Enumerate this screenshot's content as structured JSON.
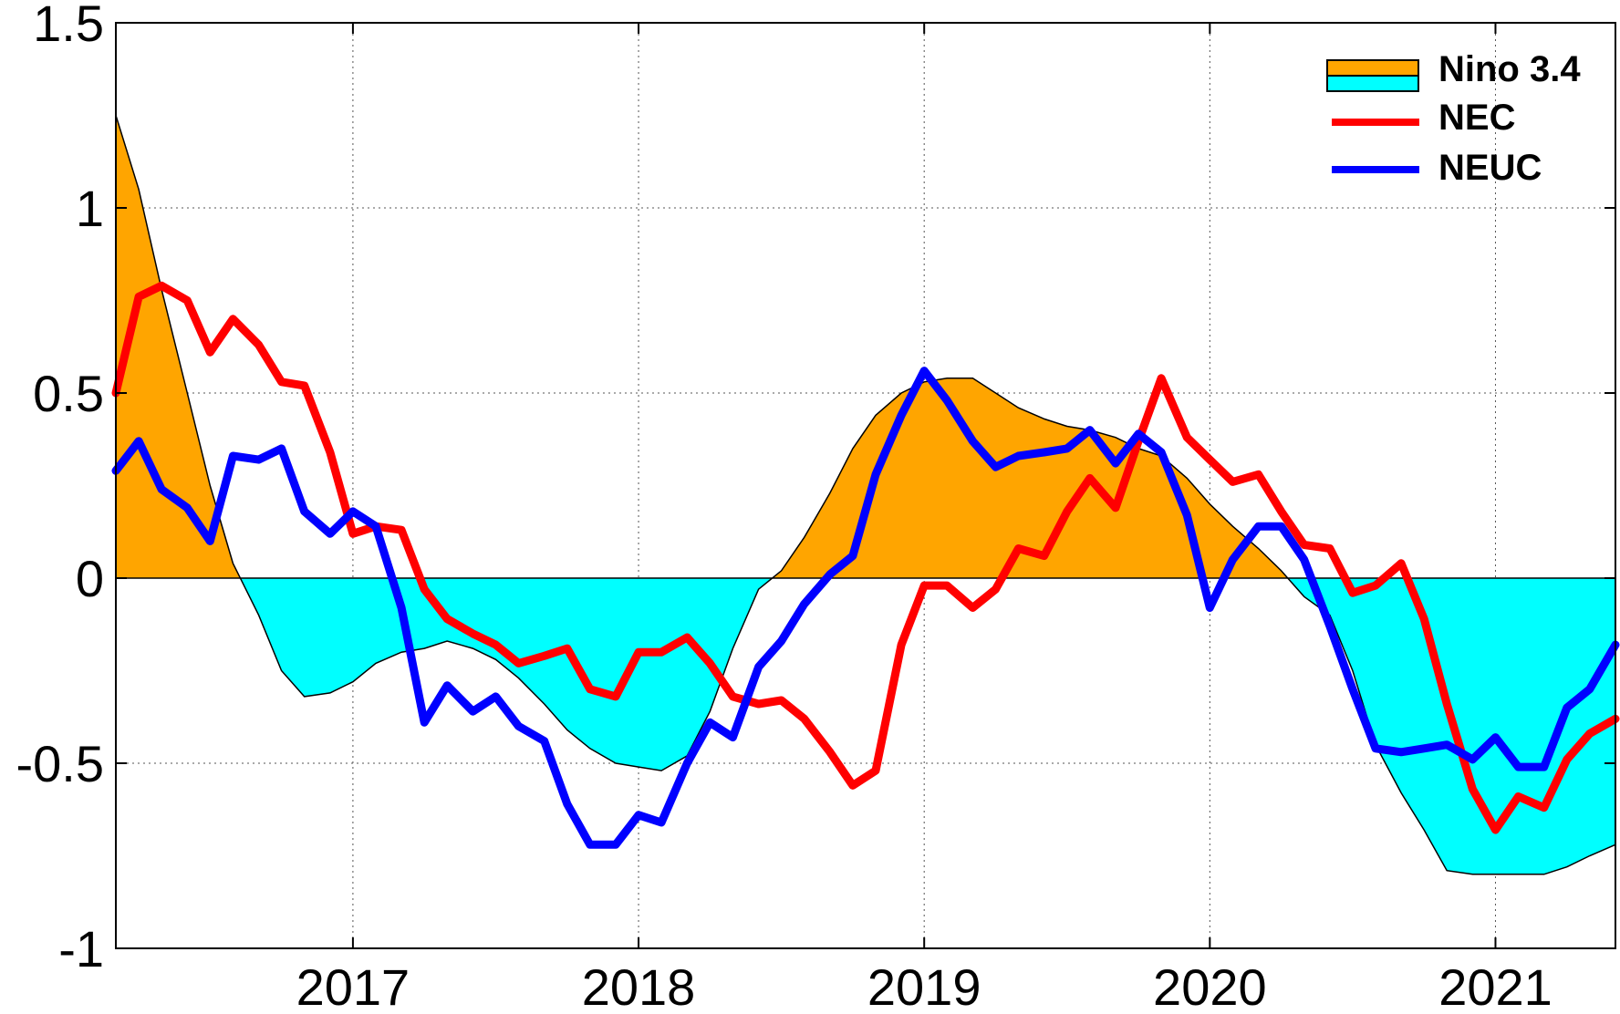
{
  "chart_data": {
    "type": "line",
    "title": "",
    "xlabel": "",
    "ylabel": "",
    "xlim": [
      2016.17,
      2021.42
    ],
    "ylim": [
      -1,
      1.5
    ],
    "grid": true,
    "legend_position": "top-right",
    "x_ticks": [
      2017,
      2018,
      2019,
      2020,
      2021
    ],
    "x_tick_labels": [
      "2017",
      "2018",
      "2019",
      "2020",
      "2021"
    ],
    "y_ticks": [
      1.5,
      1,
      0.5,
      0,
      -0.5,
      -1
    ],
    "y_tick_labels": [
      "1.5",
      "1",
      "0.5",
      "0",
      "-0.5",
      "-1"
    ],
    "colors": {
      "positive_fill": "#ffa500",
      "negative_fill": "#00ffff",
      "nec": "#ff0000",
      "neuc": "#0000ff"
    },
    "legend": [
      {
        "label": "Nino 3.4",
        "kind": "area"
      },
      {
        "label": "NEC",
        "kind": "line"
      },
      {
        "label": "NEUC",
        "kind": "line"
      }
    ],
    "series": [
      {
        "name": "Nino 3.4",
        "kind": "area",
        "x": [
          2016.17,
          2016.25,
          2016.33,
          2016.42,
          2016.5,
          2016.58,
          2016.67,
          2016.75,
          2016.83,
          2016.92,
          2017.0,
          2017.08,
          2017.17,
          2017.25,
          2017.33,
          2017.42,
          2017.5,
          2017.58,
          2017.67,
          2017.75,
          2017.83,
          2017.92,
          2018.0,
          2018.08,
          2018.17,
          2018.25,
          2018.33,
          2018.42,
          2018.5,
          2018.58,
          2018.67,
          2018.75,
          2018.83,
          2018.92,
          2019.0,
          2019.08,
          2019.17,
          2019.25,
          2019.33,
          2019.42,
          2019.5,
          2019.58,
          2019.67,
          2019.75,
          2019.83,
          2019.92,
          2020.0,
          2020.08,
          2020.17,
          2020.25,
          2020.33,
          2020.42,
          2020.5,
          2020.58,
          2020.67,
          2020.75,
          2020.83,
          2020.92,
          2021.0,
          2021.08,
          2021.17,
          2021.25,
          2021.33,
          2021.42
        ],
        "values": [
          1.25,
          1.05,
          0.78,
          0.5,
          0.25,
          0.04,
          -0.1,
          -0.25,
          -0.32,
          -0.31,
          -0.28,
          -0.23,
          -0.2,
          -0.19,
          -0.17,
          -0.19,
          -0.22,
          -0.27,
          -0.34,
          -0.41,
          -0.46,
          -0.5,
          -0.51,
          -0.52,
          -0.48,
          -0.36,
          -0.19,
          -0.03,
          0.02,
          0.11,
          0.23,
          0.35,
          0.44,
          0.5,
          0.53,
          0.54,
          0.54,
          0.5,
          0.46,
          0.43,
          0.41,
          0.4,
          0.38,
          0.35,
          0.33,
          0.27,
          0.2,
          0.14,
          0.08,
          0.02,
          -0.05,
          -0.1,
          -0.25,
          -0.45,
          -0.58,
          -0.68,
          -0.79,
          -0.8,
          -0.8,
          -0.8,
          -0.8,
          -0.78,
          -0.75,
          -0.72
        ]
      },
      {
        "name": "NEC",
        "kind": "line",
        "x": [
          2016.17,
          2016.25,
          2016.33,
          2016.42,
          2016.5,
          2016.58,
          2016.67,
          2016.75,
          2016.83,
          2016.92,
          2017.0,
          2017.08,
          2017.17,
          2017.25,
          2017.33,
          2017.42,
          2017.5,
          2017.58,
          2017.67,
          2017.75,
          2017.83,
          2017.92,
          2018.0,
          2018.08,
          2018.17,
          2018.25,
          2018.33,
          2018.42,
          2018.5,
          2018.58,
          2018.67,
          2018.75,
          2018.83,
          2018.92,
          2019.0,
          2019.08,
          2019.17,
          2019.25,
          2019.33,
          2019.42,
          2019.5,
          2019.58,
          2019.67,
          2019.75,
          2019.83,
          2019.92,
          2020.0,
          2020.08,
          2020.17,
          2020.25,
          2020.33,
          2020.42,
          2020.5,
          2020.58,
          2020.67,
          2020.75,
          2020.83,
          2020.92,
          2021.0,
          2021.08,
          2021.17,
          2021.25,
          2021.33,
          2021.42
        ],
        "values": [
          0.5,
          0.76,
          0.79,
          0.75,
          0.61,
          0.7,
          0.63,
          0.53,
          0.52,
          0.34,
          0.12,
          0.14,
          0.13,
          -0.03,
          -0.11,
          -0.15,
          -0.18,
          -0.23,
          -0.21,
          -0.19,
          -0.3,
          -0.32,
          -0.2,
          -0.2,
          -0.16,
          -0.23,
          -0.32,
          -0.34,
          -0.33,
          -0.38,
          -0.47,
          -0.56,
          -0.52,
          -0.18,
          -0.02,
          -0.02,
          -0.08,
          -0.03,
          0.08,
          0.06,
          0.18,
          0.27,
          0.19,
          0.37,
          0.54,
          0.38,
          0.32,
          0.26,
          0.28,
          0.18,
          0.09,
          0.08,
          -0.04,
          -0.02,
          0.04,
          -0.11,
          -0.34,
          -0.57,
          -0.68,
          -0.59,
          -0.62,
          -0.49,
          -0.42,
          -0.38
        ]
      },
      {
        "name": "NEUC",
        "kind": "line",
        "x": [
          2016.17,
          2016.25,
          2016.33,
          2016.42,
          2016.5,
          2016.58,
          2016.67,
          2016.75,
          2016.83,
          2016.92,
          2017.0,
          2017.08,
          2017.17,
          2017.25,
          2017.33,
          2017.42,
          2017.5,
          2017.58,
          2017.67,
          2017.75,
          2017.83,
          2017.92,
          2018.0,
          2018.08,
          2018.17,
          2018.25,
          2018.33,
          2018.42,
          2018.5,
          2018.58,
          2018.67,
          2018.75,
          2018.83,
          2018.92,
          2019.0,
          2019.08,
          2019.17,
          2019.25,
          2019.33,
          2019.42,
          2019.5,
          2019.58,
          2019.67,
          2019.75,
          2019.83,
          2019.92,
          2020.0,
          2020.08,
          2020.17,
          2020.25,
          2020.33,
          2020.42,
          2020.5,
          2020.58,
          2020.67,
          2020.75,
          2020.83,
          2020.92,
          2021.0,
          2021.08,
          2021.17,
          2021.25,
          2021.33,
          2021.42
        ],
        "values": [
          0.29,
          0.37,
          0.24,
          0.19,
          0.1,
          0.33,
          0.32,
          0.35,
          0.18,
          0.12,
          0.18,
          0.14,
          -0.08,
          -0.39,
          -0.29,
          -0.36,
          -0.32,
          -0.4,
          -0.44,
          -0.61,
          -0.72,
          -0.72,
          -0.64,
          -0.66,
          -0.5,
          -0.39,
          -0.43,
          -0.24,
          -0.17,
          -0.07,
          0.01,
          0.06,
          0.28,
          0.44,
          0.56,
          0.48,
          0.37,
          0.3,
          0.33,
          0.34,
          0.35,
          0.4,
          0.31,
          0.39,
          0.34,
          0.17,
          -0.08,
          0.05,
          0.14,
          0.14,
          0.05,
          -0.13,
          -0.3,
          -0.46,
          -0.47,
          -0.46,
          -0.45,
          -0.49,
          -0.43,
          -0.51,
          -0.51,
          -0.35,
          -0.3,
          -0.18
        ]
      }
    ]
  }
}
